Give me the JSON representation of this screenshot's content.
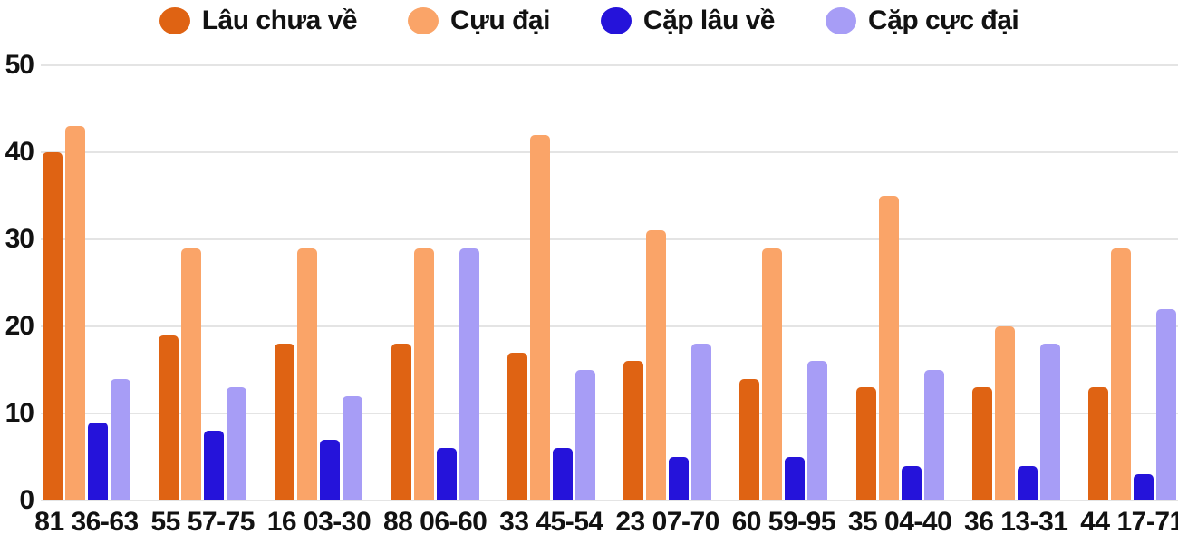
{
  "chart_data": {
    "type": "bar",
    "title": "",
    "xlabel": "",
    "ylabel": "",
    "categories": [
      "81 36-63",
      "55 57-75",
      "16 03-30",
      "88 06-60",
      "33 45-54",
      "23 07-70",
      "60 59-95",
      "35 04-40",
      "36 13-31",
      "44 17-71"
    ],
    "series": [
      {
        "name": "Lâu chưa về",
        "color": "#df6313",
        "values": [
          40,
          19,
          18,
          18,
          17,
          16,
          14,
          13,
          13,
          13
        ]
      },
      {
        "name": "Cựu đại",
        "color": "#faa468",
        "values": [
          43,
          29,
          29,
          29,
          42,
          31,
          29,
          35,
          20,
          29
        ]
      },
      {
        "name": "Cặp lâu về",
        "color": "#2513da",
        "values": [
          9,
          8,
          7,
          6,
          6,
          5,
          5,
          4,
          4,
          3
        ]
      },
      {
        "name": "Cặp cực đại",
        "color": "#a79df6",
        "values": [
          14,
          13,
          12,
          29,
          15,
          18,
          16,
          15,
          18,
          22
        ]
      }
    ],
    "ylim": [
      0,
      50
    ],
    "y_ticks": [
      0,
      10,
      20,
      30,
      40,
      50
    ],
    "grid": true,
    "legend_position": "top"
  },
  "colors": {
    "background": "#ffffff",
    "gridline": "#e4e4e4",
    "text": "#121212"
  }
}
